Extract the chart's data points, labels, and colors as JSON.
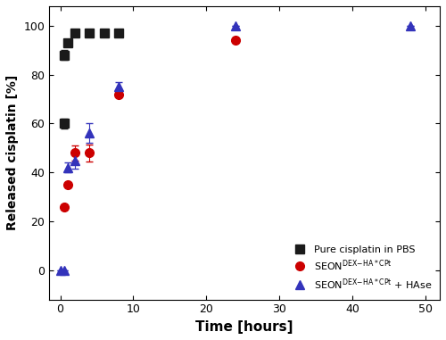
{
  "series1_x": [
    0.5,
    1,
    2,
    4,
    6,
    8
  ],
  "series1_y": [
    88,
    93,
    97,
    97,
    97,
    97
  ],
  "series1_yerr": [
    2.0,
    0.8,
    1.5,
    1.5,
    1.5,
    1.5
  ],
  "series1_color": "#1a1a1a",
  "series1_marker": "s",
  "series2_x": [
    0.5,
    1,
    2,
    4,
    8,
    24
  ],
  "series2_y": [
    26,
    35,
    48,
    48,
    72,
    94
  ],
  "series2_yerr": [
    0,
    0,
    3.0,
    3.5,
    0,
    0
  ],
  "series2_color": "#cc0000",
  "series2_marker": "o",
  "series3_x": [
    0,
    0.5,
    1,
    2,
    4,
    8,
    24,
    48
  ],
  "series3_y": [
    0,
    0,
    42,
    45,
    56,
    75,
    100,
    100
  ],
  "series3_yerr": [
    0,
    0,
    2.0,
    3.5,
    4.0,
    2.0,
    0,
    0
  ],
  "series3_color": "#3333bb",
  "series3_marker": "^",
  "series1_extra_x": [
    0.5
  ],
  "series1_extra_y": [
    60
  ],
  "series1_extra_yerr": [
    2.0
  ],
  "xlabel": "Time [hours]",
  "ylabel": "Released cisplatin [%]",
  "xlim": [
    -1.5,
    52
  ],
  "ylim": [
    -12,
    108
  ],
  "xticks": [
    0,
    10,
    20,
    30,
    40,
    50
  ],
  "yticks": [
    0,
    20,
    40,
    60,
    80,
    100
  ],
  "markersize": 7,
  "capsize": 3,
  "bg_color": "#ffffff",
  "legend_label1": "Pure cisplatin in PBS",
  "legend_label2": "SEON$^{\\mathrm{DEX\\text{-}HA*CPt}}$",
  "legend_label3": "SEON$^{\\mathrm{DEX\\text{-}HA*CPt}}$ + HAse"
}
